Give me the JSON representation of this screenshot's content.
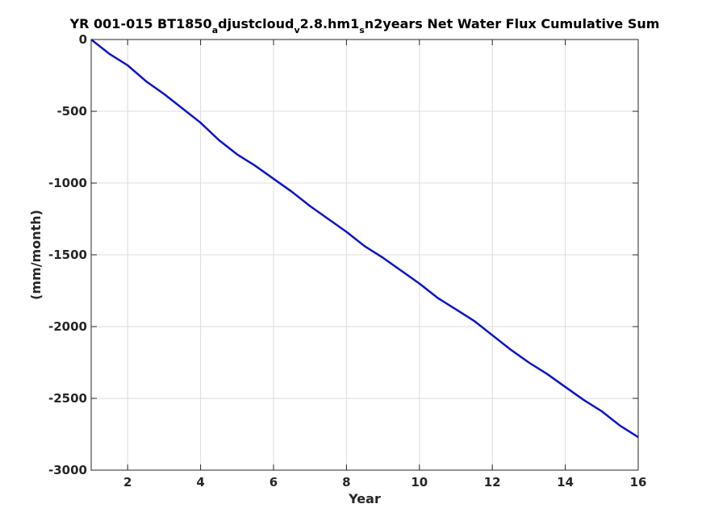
{
  "chart_data": {
    "type": "line",
    "title_parts": {
      "p1": "YR 001-015 BT1850",
      "s1": "a",
      "p2": "djustcloud",
      "s2": "v",
      "p3": "2.8.hm1",
      "s3": "s",
      "p4": "n2years Net Water Flux Cumulative Sum"
    },
    "xlabel": "Year",
    "ylabel": "(mm/month)",
    "xlim": [
      1,
      16
    ],
    "ylim": [
      -3000,
      0
    ],
    "xticks": [
      2,
      4,
      6,
      8,
      10,
      12,
      14,
      16
    ],
    "xtick_labels": [
      "2",
      "4",
      "6",
      "8",
      "10",
      "12",
      "14",
      "16"
    ],
    "yticks": [
      0,
      -500,
      -1000,
      -1500,
      -2000,
      -2500,
      -3000
    ],
    "ytick_labels": [
      "0",
      "-500",
      "-1000",
      "-1500",
      "-2000",
      "-2500",
      "-3000"
    ],
    "grid": true,
    "series": [
      {
        "color": "#0a14c8",
        "x": [
          1.0,
          1.5,
          2.0,
          2.5,
          3.0,
          3.5,
          4.0,
          4.5,
          5.0,
          5.5,
          6.0,
          6.5,
          7.0,
          7.5,
          8.0,
          8.5,
          9.0,
          9.5,
          10.0,
          10.5,
          11.0,
          11.5,
          12.0,
          12.5,
          13.0,
          13.5,
          14.0,
          14.5,
          15.0,
          15.5,
          16.0
        ],
        "y": [
          0,
          -100,
          -180,
          -290,
          -380,
          -480,
          -580,
          -700,
          -800,
          -880,
          -970,
          -1060,
          -1160,
          -1250,
          -1340,
          -1440,
          -1520,
          -1610,
          -1700,
          -1800,
          -1880,
          -1960,
          -2060,
          -2160,
          -2250,
          -2330,
          -2420,
          -2510,
          -2590,
          -2690,
          -2770
        ]
      }
    ]
  }
}
